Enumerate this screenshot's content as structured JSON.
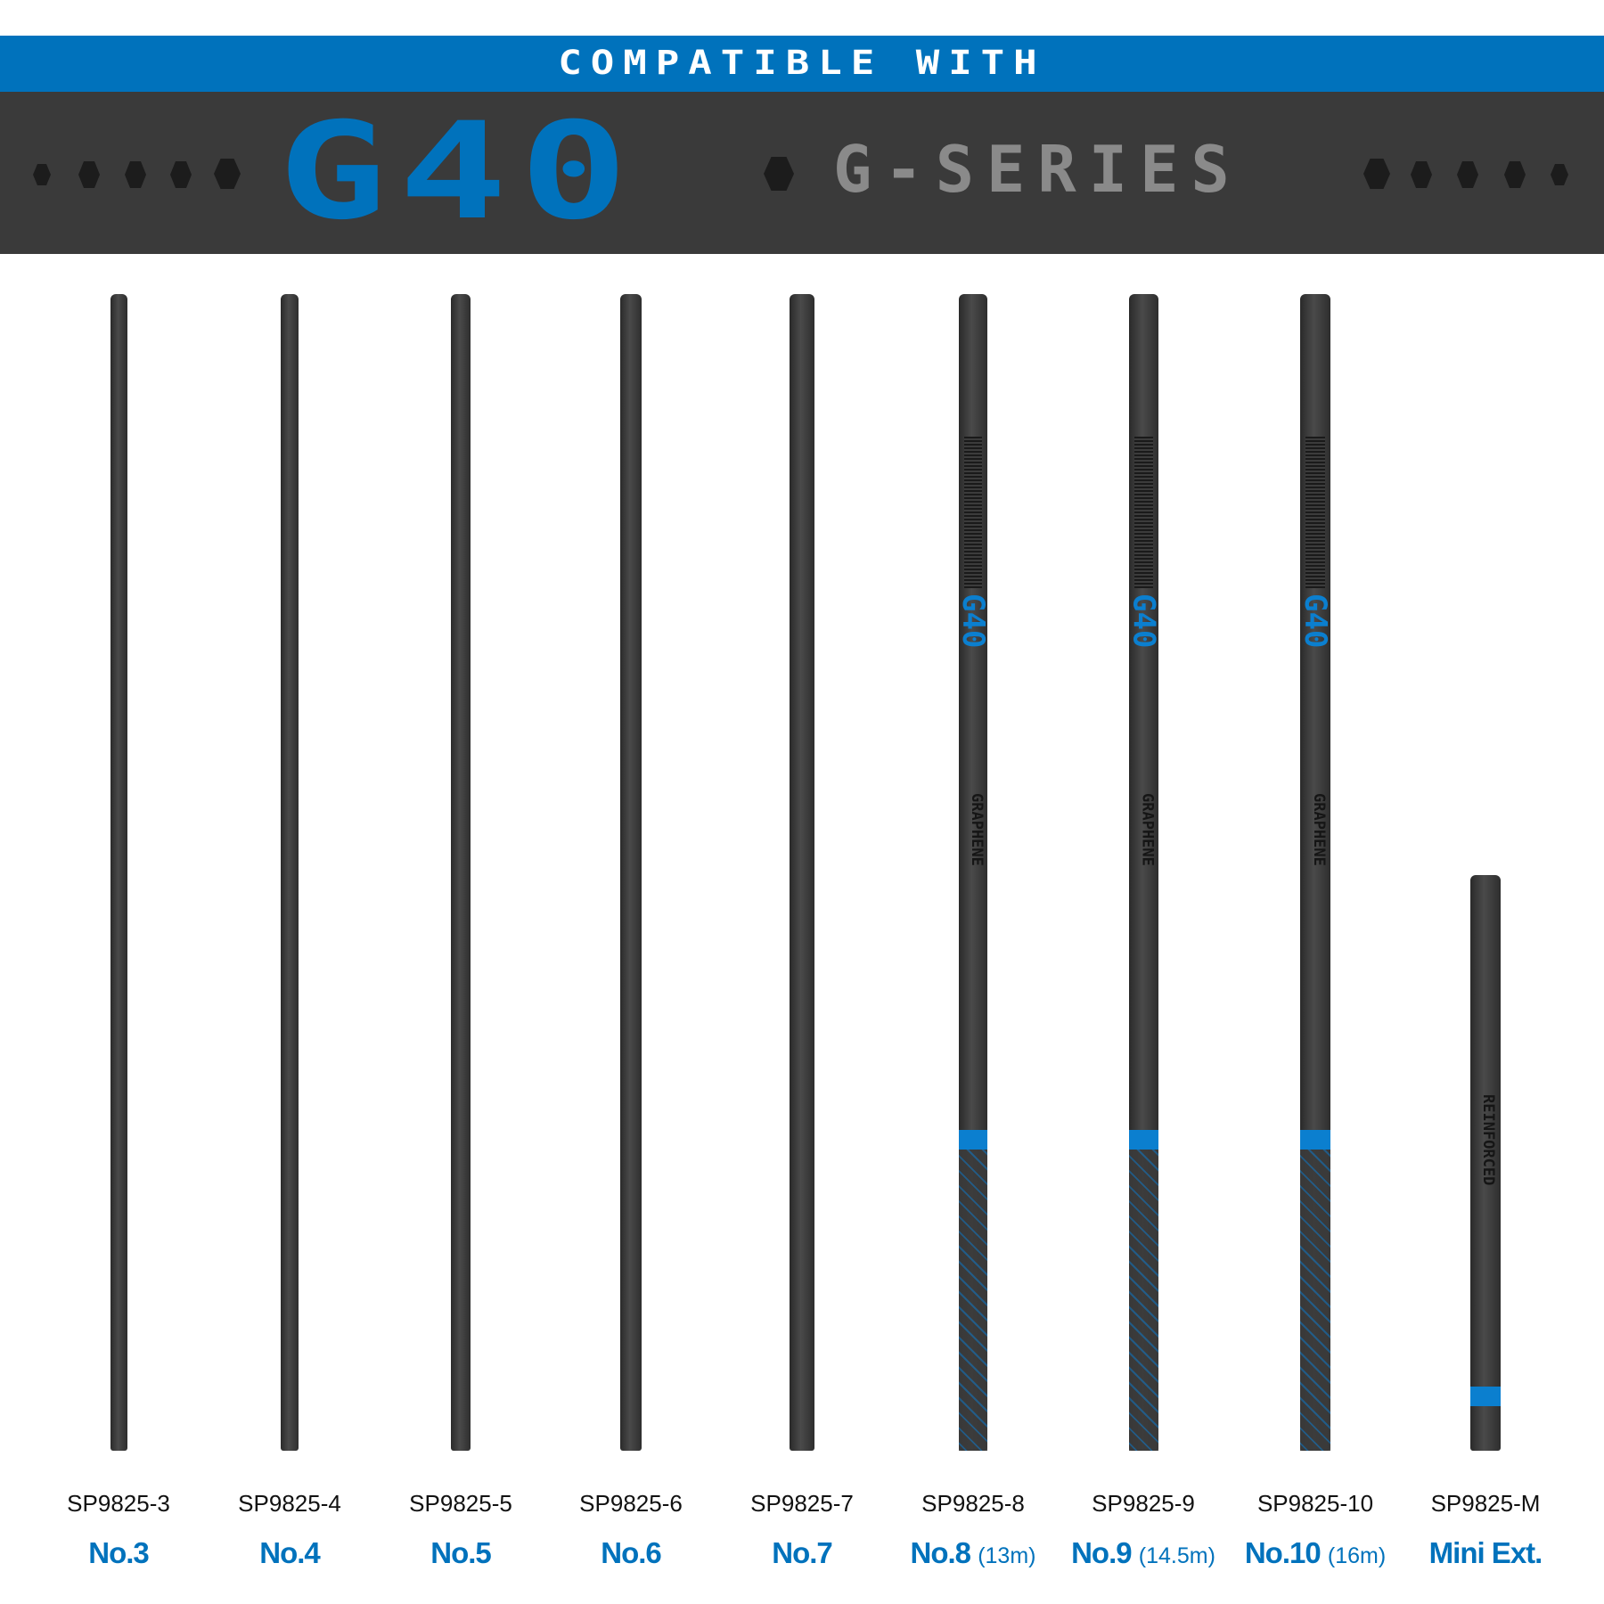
{
  "header": {
    "compatible_label": "COMPATIBLE WITH",
    "model": "G40",
    "series": "G-SERIES"
  },
  "colors": {
    "brand_blue": "#0072bc",
    "dark_band": "#3a3a3a",
    "series_gray": "#8a8a8a"
  },
  "sections": [
    {
      "code": "SP9825-3",
      "name": "No.3",
      "length": ""
    },
    {
      "code": "SP9825-4",
      "name": "No.4",
      "length": ""
    },
    {
      "code": "SP9825-5",
      "name": "No.5",
      "length": ""
    },
    {
      "code": "SP9825-6",
      "name": "No.6",
      "length": ""
    },
    {
      "code": "SP9825-7",
      "name": "No.7",
      "length": ""
    },
    {
      "code": "SP9825-8",
      "name": "No.8",
      "length": "(13m)"
    },
    {
      "code": "SP9825-9",
      "name": "No.9",
      "length": "(14.5m)"
    },
    {
      "code": "SP9825-10",
      "name": "No.10",
      "length": "(16m)"
    },
    {
      "code": "SP9825-M",
      "name": "Mini Ext.",
      "length": ""
    }
  ],
  "pole_text": {
    "model": "G40",
    "material": "GRAPHENE",
    "mini": "REINFORCED"
  }
}
